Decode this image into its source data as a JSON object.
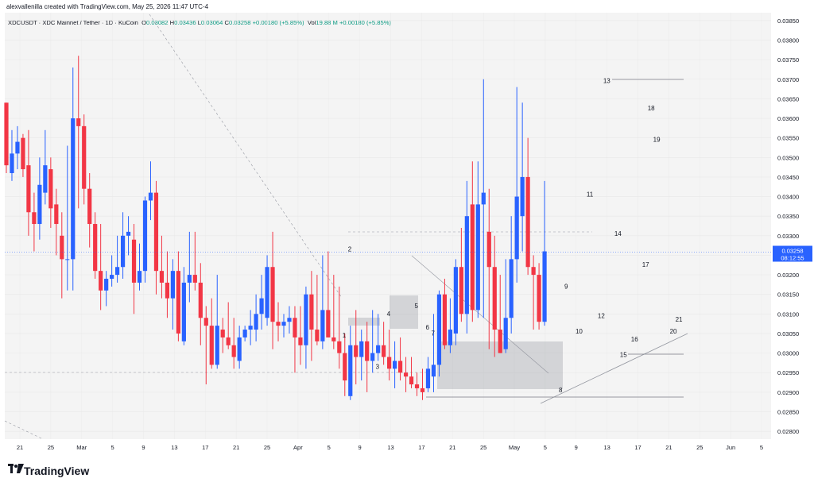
{
  "header": {
    "credit": "alexvallenilla created with TradingView.com, May 25, 2026 11:47 UTC-4"
  },
  "legend": {
    "symbol": "XDCUSDT · XDC Mainnet / Tether · 1D · KuCoin",
    "o_label": "O",
    "o": "0.03082",
    "h_label": "H",
    "h": "0.03436",
    "l_label": "L",
    "l": "0.03064",
    "c_label": "C",
    "c": "0.03258",
    "chg": "+0.00180 (+5.85%)",
    "vol_label": "Vol",
    "vol": "19.88 M",
    "vol_chg": "+0.00180 (+5.85%)"
  },
  "price_badge": {
    "price": "0.03258",
    "timer": "08:12:55",
    "color": "#2962ff"
  },
  "brand": {
    "name": "TradingView"
  },
  "colors": {
    "up": "#2962ff",
    "down": "#f23645",
    "background": "#f4f4f4",
    "grid": "#e8e8e8"
  },
  "chart_data": {
    "type": "candlestick",
    "ylim": [
      0.0278,
      0.0387
    ],
    "y_ticks": [
      "0.03850",
      "0.03800",
      "0.03750",
      "0.03700",
      "0.03650",
      "0.03600",
      "0.03550",
      "0.03500",
      "0.03450",
      "0.03400",
      "0.03350",
      "0.03300",
      "0.03250",
      "0.03200",
      "0.03150",
      "0.03100",
      "0.03050",
      "0.03000",
      "0.02950",
      "0.02900",
      "0.02850",
      "0.02800"
    ],
    "x_ticks": [
      "21",
      "25",
      "Mar",
      "5",
      "9",
      "13",
      "17",
      "21",
      "25",
      "Apr",
      "5",
      "9",
      "13",
      "17",
      "21",
      "25",
      "May",
      "5",
      "9",
      "13",
      "17",
      "21",
      "25",
      "Jun",
      "5"
    ],
    "candles": [
      [
        0.0364,
        0.0364,
        0.0346,
        0.0348
      ],
      [
        0.0346,
        0.0357,
        0.0344,
        0.0351
      ],
      [
        0.0351,
        0.0358,
        0.0347,
        0.0354
      ],
      [
        0.0355,
        0.0356,
        0.0345,
        0.0347
      ],
      [
        0.0348,
        0.0357,
        0.033,
        0.0336
      ],
      [
        0.0336,
        0.0341,
        0.0326,
        0.0333
      ],
      [
        0.0333,
        0.035,
        0.0329,
        0.0343
      ],
      [
        0.0341,
        0.0357,
        0.0338,
        0.0348
      ],
      [
        0.0347,
        0.035,
        0.0332,
        0.0337
      ],
      [
        0.0338,
        0.0342,
        0.0325,
        0.0333
      ],
      [
        0.033,
        0.0336,
        0.0314,
        0.0324
      ],
      [
        0.0324,
        0.0353,
        0.0316,
        0.0324
      ],
      [
        0.0324,
        0.0373,
        0.0316,
        0.036
      ],
      [
        0.036,
        0.0376,
        0.0337,
        0.0358
      ],
      [
        0.0358,
        0.0361,
        0.0338,
        0.0342
      ],
      [
        0.0342,
        0.0346,
        0.0327,
        0.0333
      ],
      [
        0.0333,
        0.0336,
        0.0319,
        0.0321
      ],
      [
        0.0321,
        0.0333,
        0.0311,
        0.0316
      ],
      [
        0.0316,
        0.0321,
        0.0312,
        0.0319
      ],
      [
        0.0319,
        0.0325,
        0.0317,
        0.032
      ],
      [
        0.032,
        0.033,
        0.0318,
        0.0322
      ],
      [
        0.0322,
        0.0336,
        0.0319,
        0.033
      ],
      [
        0.033,
        0.0335,
        0.0325,
        0.0331
      ],
      [
        0.0329,
        0.0333,
        0.031,
        0.0318
      ],
      [
        0.0318,
        0.0328,
        0.0316,
        0.0321
      ],
      [
        0.0321,
        0.034,
        0.0318,
        0.0339
      ],
      [
        0.0339,
        0.0349,
        0.0334,
        0.0341
      ],
      [
        0.0341,
        0.0344,
        0.0315,
        0.0321
      ],
      [
        0.0321,
        0.033,
        0.0314,
        0.0318
      ],
      [
        0.0318,
        0.0326,
        0.0309,
        0.0314
      ],
      [
        0.0314,
        0.0324,
        0.0306,
        0.0321
      ],
      [
        0.0321,
        0.0326,
        0.0303,
        0.0305
      ],
      [
        0.0303,
        0.0322,
        0.0302,
        0.0318
      ],
      [
        0.0318,
        0.0331,
        0.0313,
        0.032
      ],
      [
        0.032,
        0.0331,
        0.0316,
        0.0318
      ],
      [
        0.0318,
        0.0323,
        0.0302,
        0.0309
      ],
      [
        0.0309,
        0.0312,
        0.0292,
        0.0307
      ],
      [
        0.0307,
        0.0314,
        0.0296,
        0.0297
      ],
      [
        0.0297,
        0.032,
        0.0296,
        0.0307
      ],
      [
        0.0306,
        0.0309,
        0.03,
        0.0304
      ],
      [
        0.0304,
        0.0313,
        0.0301,
        0.0302
      ],
      [
        0.0302,
        0.0309,
        0.0296,
        0.0299
      ],
      [
        0.0298,
        0.0307,
        0.0296,
        0.0304
      ],
      [
        0.0304,
        0.0307,
        0.0303,
        0.0306
      ],
      [
        0.0306,
        0.0311,
        0.0302,
        0.0307
      ],
      [
        0.0306,
        0.0315,
        0.0303,
        0.031
      ],
      [
        0.031,
        0.032,
        0.0306,
        0.0314
      ],
      [
        0.0309,
        0.0325,
        0.0307,
        0.0322
      ],
      [
        0.0322,
        0.0331,
        0.0301,
        0.0308
      ],
      [
        0.0308,
        0.0313,
        0.0303,
        0.0307
      ],
      [
        0.0307,
        0.031,
        0.0304,
        0.0308
      ],
      [
        0.0308,
        0.0312,
        0.0305,
        0.0309
      ],
      [
        0.0309,
        0.0312,
        0.0295,
        0.0304
      ],
      [
        0.0304,
        0.0312,
        0.0297,
        0.0302
      ],
      [
        0.0302,
        0.0317,
        0.0296,
        0.0315
      ],
      [
        0.0315,
        0.0321,
        0.0298,
        0.0306
      ],
      [
        0.0306,
        0.032,
        0.0302,
        0.0303
      ],
      [
        0.0303,
        0.0325,
        0.0301,
        0.0311
      ],
      [
        0.0311,
        0.0326,
        0.0304,
        0.0304
      ],
      [
        0.0304,
        0.032,
        0.0301,
        0.0303
      ],
      [
        0.0303,
        0.0317,
        0.0296,
        0.03
      ],
      [
        0.03,
        0.0305,
        0.0289,
        0.0293
      ],
      [
        0.0289,
        0.0307,
        0.0288,
        0.0302
      ],
      [
        0.0302,
        0.0311,
        0.0292,
        0.0299
      ],
      [
        0.0299,
        0.0306,
        0.0293,
        0.0303
      ],
      [
        0.0303,
        0.0308,
        0.029,
        0.0298
      ],
      [
        0.0298,
        0.0311,
        0.0295,
        0.03
      ],
      [
        0.03,
        0.031,
        0.0298,
        0.0302
      ],
      [
        0.0302,
        0.0308,
        0.0297,
        0.0299
      ],
      [
        0.0299,
        0.0306,
        0.0293,
        0.0296
      ],
      [
        0.0296,
        0.0303,
        0.0291,
        0.0298
      ],
      [
        0.0298,
        0.0304,
        0.0293,
        0.0295
      ],
      [
        0.0295,
        0.0299,
        0.029,
        0.0294
      ],
      [
        0.0294,
        0.0299,
        0.0291,
        0.0292
      ],
      [
        0.0292,
        0.0295,
        0.0289,
        0.0291
      ],
      [
        0.0291,
        0.0296,
        0.0288,
        0.029
      ],
      [
        0.0291,
        0.0299,
        0.029,
        0.0296
      ],
      [
        0.0294,
        0.031,
        0.029,
        0.0297
      ],
      [
        0.0297,
        0.0316,
        0.0294,
        0.0315
      ],
      [
        0.0315,
        0.0319,
        0.0301,
        0.0302
      ],
      [
        0.0302,
        0.0314,
        0.03,
        0.0306
      ],
      [
        0.0305,
        0.0324,
        0.0302,
        0.0322
      ],
      [
        0.0322,
        0.0332,
        0.0308,
        0.031
      ],
      [
        0.031,
        0.0344,
        0.0305,
        0.0335
      ],
      [
        0.0338,
        0.0349,
        0.0308,
        0.0311
      ],
      [
        0.0311,
        0.0349,
        0.0309,
        0.0338
      ],
      [
        0.0338,
        0.037,
        0.0309,
        0.0341
      ],
      [
        0.0331,
        0.0342,
        0.0301,
        0.0322
      ],
      [
        0.0322,
        0.033,
        0.0299,
        0.0306
      ],
      [
        0.0306,
        0.032,
        0.03,
        0.03
      ],
      [
        0.0301,
        0.0324,
        0.03,
        0.0309
      ],
      [
        0.0309,
        0.0335,
        0.0305,
        0.0324
      ],
      [
        0.0324,
        0.0368,
        0.0318,
        0.034
      ],
      [
        0.0335,
        0.0364,
        0.0326,
        0.0345
      ],
      [
        0.0345,
        0.0355,
        0.032,
        0.0322
      ],
      [
        0.0322,
        0.0325,
        0.0306,
        0.032
      ],
      [
        0.032,
        0.0323,
        0.0306,
        0.0308
      ],
      [
        0.0308,
        0.0344,
        0.0307,
        0.0326
      ]
    ],
    "annotations": [
      {
        "text": "1",
        "x": 60,
        "y": 0.0304
      },
      {
        "text": "2",
        "x": 61,
        "y": 0.0326
      },
      {
        "text": "3",
        "x": 66,
        "y": 0.0296
      },
      {
        "text": "4",
        "x": 68,
        "y": 0.03095
      },
      {
        "text": "5",
        "x": 73,
        "y": 0.03115
      },
      {
        "text": "6",
        "x": 75,
        "y": 0.0306
      },
      {
        "text": "7",
        "x": 76,
        "y": 0.03045
      },
      {
        "text": "8",
        "x": 99,
        "y": 0.029
      },
      {
        "text": "9",
        "x": 100,
        "y": 0.03165
      },
      {
        "text": "10",
        "x": 102,
        "y": 0.0305
      },
      {
        "text": "11",
        "x": 104,
        "y": 0.034
      },
      {
        "text": "12",
        "x": 106,
        "y": 0.0309
      },
      {
        "text": "13",
        "x": 107,
        "y": 0.0369
      },
      {
        "text": "14",
        "x": 109,
        "y": 0.033
      },
      {
        "text": "15",
        "x": 110,
        "y": 0.0299
      },
      {
        "text": "16",
        "x": 112,
        "y": 0.0303
      },
      {
        "text": "17",
        "x": 114,
        "y": 0.0322
      },
      {
        "text": "18",
        "x": 115,
        "y": 0.0362
      },
      {
        "text": "19",
        "x": 116,
        "y": 0.0354
      },
      {
        "text": "20",
        "x": 119,
        "y": 0.0305
      },
      {
        "text": "21",
        "x": 120,
        "y": 0.0308
      }
    ]
  }
}
